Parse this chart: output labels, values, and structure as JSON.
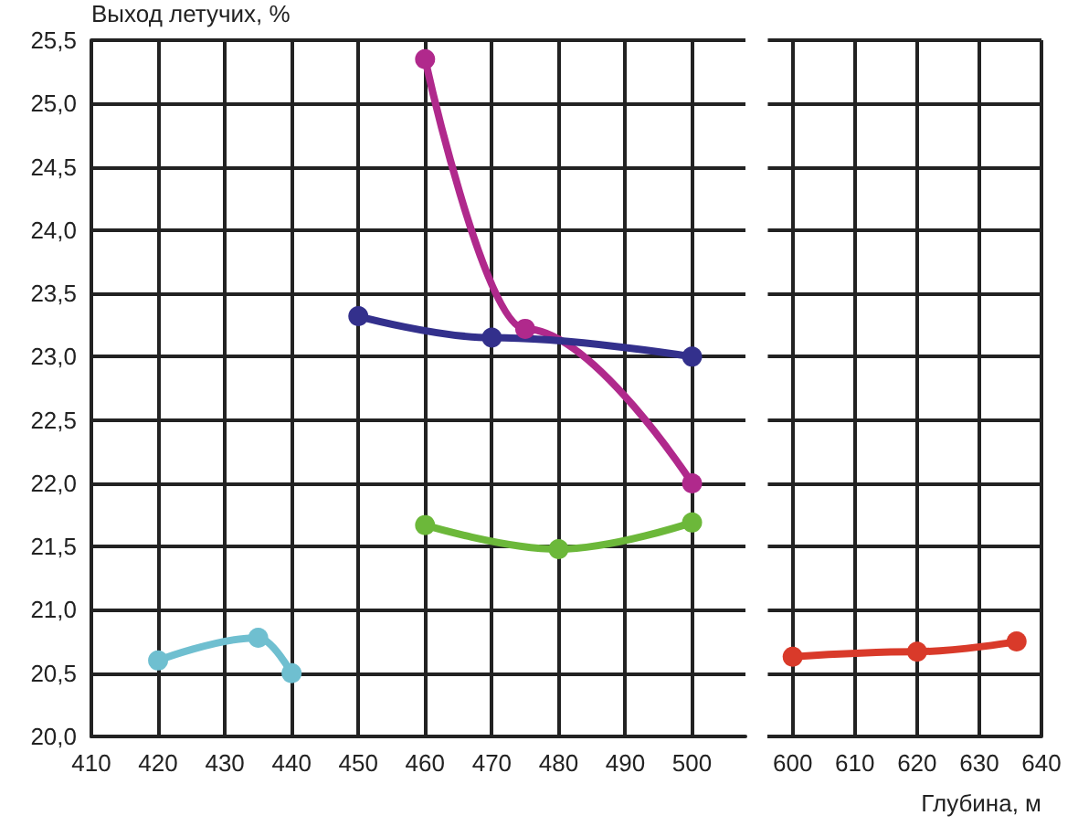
{
  "chart_data": [
    {
      "type": "line",
      "ylabel": "Выход летучих, %",
      "marker": "circle",
      "grid": true,
      "xlim": [
        410,
        508
      ],
      "xticks": [
        410,
        420,
        430,
        440,
        450,
        460,
        470,
        480,
        490,
        500
      ],
      "ylim": [
        20,
        25.5
      ],
      "yticks": [
        {
          "value": 20,
          "label": "20,0"
        },
        {
          "value": 20.5,
          "label": "20,5"
        },
        {
          "value": 21,
          "label": "21,0"
        },
        {
          "value": 21.5,
          "label": "21,5"
        },
        {
          "value": 22,
          "label": "22,0"
        },
        {
          "value": 22.5,
          "label": "22,5"
        },
        {
          "value": 23,
          "label": "23,0"
        },
        {
          "value": 23.5,
          "label": "23,5"
        },
        {
          "value": 24,
          "label": "24,0"
        },
        {
          "value": 24.5,
          "label": "24,5"
        },
        {
          "value": 25,
          "label": "25,0"
        },
        {
          "value": 25.5,
          "label": "25,5"
        }
      ],
      "series": [
        {
          "color": "#6fbfd0",
          "x": [
            420,
            435,
            440
          ],
          "values": [
            20.6,
            20.78,
            20.5
          ]
        },
        {
          "color": "#b0298c",
          "x": [
            460,
            475,
            500
          ],
          "values": [
            25.35,
            23.22,
            22.0
          ]
        },
        {
          "color": "#33308c",
          "x": [
            450,
            470,
            500
          ],
          "values": [
            23.32,
            23.15,
            23.0
          ]
        },
        {
          "color": "#6cb83a",
          "x": [
            460,
            480,
            500
          ],
          "values": [
            21.67,
            21.48,
            21.69
          ]
        }
      ]
    },
    {
      "type": "line",
      "xlabel": "Глубина, м",
      "marker": "circle",
      "grid": true,
      "tick_labels": "x",
      "xlim": [
        596,
        640
      ],
      "xticks": [
        600,
        610,
        620,
        630,
        640
      ],
      "ylim": [
        20,
        25.5
      ],
      "yticks": [
        20,
        20.5,
        21,
        21.5,
        22,
        22.5,
        23,
        23.5,
        24,
        24.5,
        25,
        25.5
      ],
      "series": [
        {
          "color": "#d93a2a",
          "x": [
            600,
            620,
            636
          ],
          "values": [
            20.63,
            20.67,
            20.75
          ]
        }
      ]
    }
  ]
}
